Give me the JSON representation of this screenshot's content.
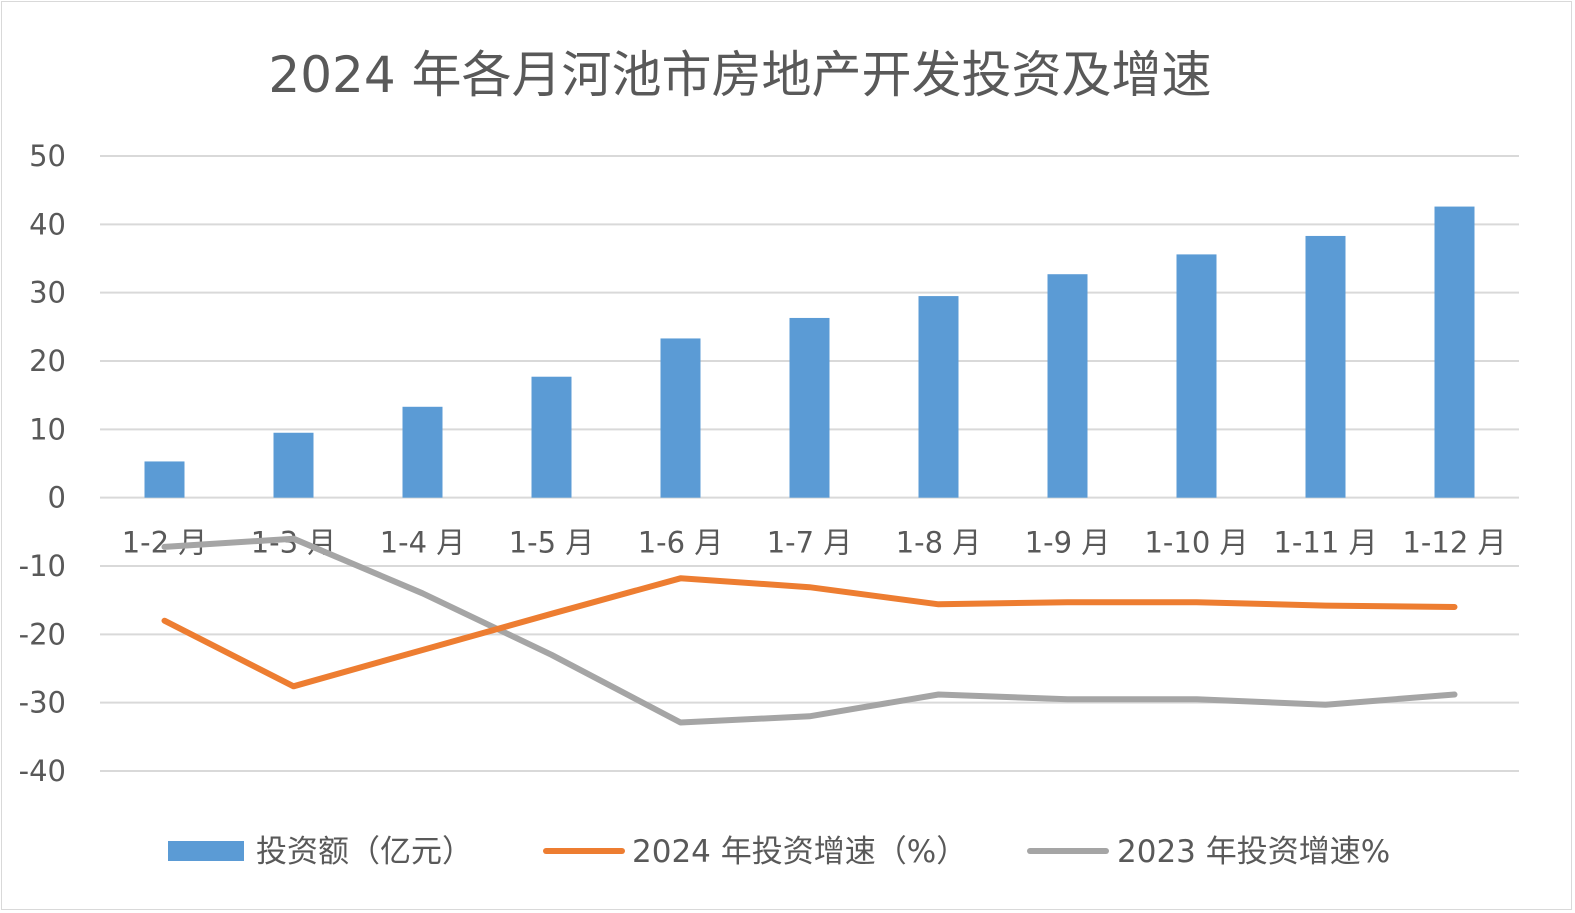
{
  "chart_data": {
    "type": "bar",
    "title": "2024 年各月河池市房地产开发投资及增速",
    "xlabel": "",
    "ylabel": "",
    "ylim": [
      -40,
      50
    ],
    "yticks": [
      50,
      40,
      30,
      20,
      10,
      0,
      -10,
      -20,
      -30,
      -40
    ],
    "grid": true,
    "legend_position": "bottom",
    "categories": [
      "1-2 月",
      "1-3 月",
      "1-4 月",
      "1-5 月",
      "1-6 月",
      "1-7 月",
      "1-8 月",
      "1-9 月",
      "1-10 月",
      "1-11 月",
      "1-12 月"
    ],
    "series": [
      {
        "name": "投资额（亿元）",
        "kind": "bar",
        "color": "#5b9bd5",
        "values": [
          5.3,
          9.5,
          13.3,
          17.7,
          23.3,
          26.3,
          29.5,
          32.7,
          35.6,
          38.3,
          42.6
        ]
      },
      {
        "name": "2024 年投资增速（%）",
        "kind": "line",
        "color": "#ed7d31",
        "values": [
          -18.0,
          -27.6,
          -22.3,
          -17.0,
          -11.8,
          -13.1,
          -15.6,
          -15.3,
          -15.3,
          -15.8,
          -16.0
        ]
      },
      {
        "name": "2023 年投资增速%",
        "kind": "line",
        "color": "#a5a5a5",
        "values": [
          -7.2,
          -6.0,
          -14.0,
          -23.0,
          -32.9,
          -32.0,
          -28.8,
          -29.5,
          -29.5,
          -30.3,
          -28.8
        ]
      }
    ]
  }
}
